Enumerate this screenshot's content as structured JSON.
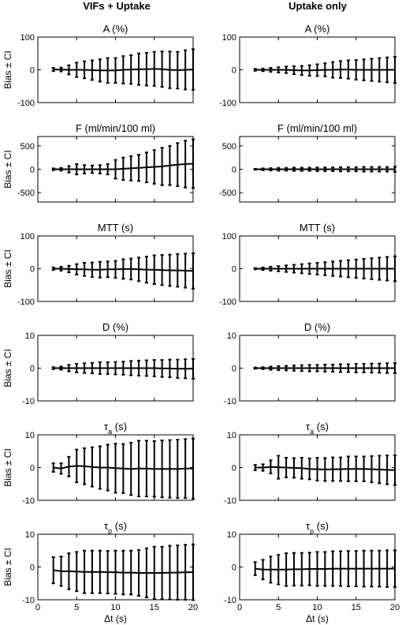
{
  "column_titles": [
    "VIFs + Uptake",
    "Uptake only"
  ],
  "chart_data": [
    {
      "type": "errorbar",
      "title": "A (%)",
      "title_sub": "",
      "title_suffix": "",
      "ylabel": "Bias ± CI",
      "ylim": [
        -100,
        100
      ],
      "yticks": [
        -100,
        0,
        100
      ],
      "xlim": [
        0,
        20
      ],
      "xticks": [
        0,
        5,
        10,
        15,
        20
      ],
      "x": [
        2,
        3,
        4,
        5,
        6,
        7,
        8,
        9,
        10,
        11,
        12,
        13,
        14,
        15,
        16,
        17,
        18,
        19,
        20
      ],
      "mean": [
        1,
        1,
        0,
        0,
        0,
        -1,
        -2,
        -2,
        -2,
        0,
        1,
        2,
        2,
        3,
        2,
        0,
        -1,
        0,
        1
      ],
      "ci": [
        5,
        6,
        14,
        22,
        26,
        30,
        34,
        38,
        38,
        42,
        44,
        48,
        50,
        52,
        54,
        56,
        56,
        60,
        62
      ]
    },
    {
      "type": "errorbar",
      "title": "A (%)",
      "title_sub": "",
      "title_suffix": "",
      "ylabel": "",
      "ylim": [
        -100,
        100
      ],
      "yticks": [
        -100,
        0,
        100
      ],
      "xlim": [
        0,
        20
      ],
      "xticks": [
        0,
        5,
        10,
        15,
        20
      ],
      "x": [
        2,
        3,
        4,
        5,
        6,
        7,
        8,
        9,
        10,
        11,
        12,
        13,
        14,
        15,
        16,
        17,
        18,
        19,
        20
      ],
      "mean": [
        0,
        0,
        0,
        0,
        0,
        -1,
        -2,
        -2,
        -1,
        0,
        0,
        1,
        1,
        0,
        0,
        0,
        0,
        0,
        0
      ],
      "ci": [
        3,
        4,
        6,
        8,
        10,
        12,
        14,
        16,
        18,
        20,
        24,
        26,
        28,
        30,
        32,
        34,
        36,
        38,
        40
      ]
    },
    {
      "type": "errorbar",
      "title": "F (ml/min/100 ml)",
      "title_sub": "",
      "title_suffix": "",
      "ylabel": "Bias ± CI",
      "ylim": [
        -700,
        700
      ],
      "yticks": [
        -500,
        0,
        500
      ],
      "xlim": [
        0,
        20
      ],
      "xticks": [
        0,
        5,
        10,
        15,
        20
      ],
      "x": [
        2,
        3,
        4,
        5,
        6,
        7,
        8,
        9,
        10,
        11,
        12,
        13,
        14,
        15,
        16,
        17,
        18,
        19,
        20
      ],
      "mean": [
        0,
        0,
        0,
        0,
        0,
        0,
        0,
        0,
        0,
        10,
        20,
        30,
        40,
        50,
        60,
        80,
        100,
        110,
        120
      ],
      "ci": [
        20,
        30,
        70,
        110,
        90,
        80,
        90,
        110,
        200,
        240,
        260,
        280,
        320,
        360,
        400,
        420,
        460,
        500,
        520
      ]
    },
    {
      "type": "errorbar",
      "title": "F (ml/min/100 ml)",
      "title_sub": "",
      "title_suffix": "",
      "ylabel": "",
      "ylim": [
        -700,
        700
      ],
      "yticks": [
        -500,
        0,
        500
      ],
      "xlim": [
        0,
        20
      ],
      "xticks": [
        0,
        5,
        10,
        15,
        20
      ],
      "x": [
        2,
        3,
        4,
        5,
        6,
        7,
        8,
        9,
        10,
        11,
        12,
        13,
        14,
        15,
        16,
        17,
        18,
        19,
        20
      ],
      "mean": [
        0,
        0,
        0,
        0,
        0,
        0,
        0,
        0,
        0,
        0,
        0,
        0,
        0,
        0,
        0,
        0,
        0,
        0,
        0
      ],
      "ci": [
        10,
        20,
        25,
        30,
        30,
        35,
        35,
        35,
        40,
        40,
        40,
        45,
        45,
        45,
        50,
        50,
        50,
        50,
        55
      ]
    },
    {
      "type": "errorbar",
      "title": "MTT (s)",
      "title_sub": "",
      "title_suffix": "",
      "ylabel": "Bias ± CI",
      "ylim": [
        -100,
        100
      ],
      "yticks": [
        -100,
        0,
        100
      ],
      "xlim": [
        0,
        20
      ],
      "xticks": [
        0,
        5,
        10,
        15,
        20
      ],
      "x": [
        2,
        3,
        4,
        5,
        6,
        7,
        8,
        9,
        10,
        11,
        12,
        13,
        14,
        15,
        16,
        17,
        18,
        19,
        20
      ],
      "mean": [
        0,
        0,
        -1,
        -2,
        -2,
        -3,
        -3,
        -2,
        -2,
        -1,
        -1,
        -2,
        -3,
        -3,
        -4,
        -5,
        -5,
        -6,
        -7
      ],
      "ci": [
        4,
        6,
        10,
        16,
        20,
        22,
        24,
        24,
        26,
        30,
        32,
        36,
        40,
        44,
        46,
        48,
        50,
        52,
        54
      ]
    },
    {
      "type": "errorbar",
      "title": "MTT (s)",
      "title_sub": "",
      "title_suffix": "",
      "ylabel": "",
      "ylim": [
        -100,
        100
      ],
      "yticks": [
        -100,
        0,
        100
      ],
      "xlim": [
        0,
        20
      ],
      "xticks": [
        0,
        5,
        10,
        15,
        20
      ],
      "x": [
        2,
        3,
        4,
        5,
        6,
        7,
        8,
        9,
        10,
        11,
        12,
        13,
        14,
        15,
        16,
        17,
        18,
        19,
        20
      ],
      "mean": [
        0,
        0,
        0,
        0,
        0,
        0,
        0,
        0,
        0,
        0,
        0,
        0,
        0,
        0,
        0,
        0,
        0,
        0,
        0
      ],
      "ci": [
        2,
        4,
        6,
        8,
        10,
        12,
        14,
        16,
        18,
        20,
        22,
        24,
        26,
        28,
        30,
        32,
        34,
        36,
        38
      ]
    },
    {
      "type": "errorbar",
      "title": "D (%)",
      "title_sub": "",
      "title_suffix": "",
      "ylabel": "Bias ± CI",
      "ylim": [
        -10,
        10
      ],
      "yticks": [
        -10,
        0,
        10
      ],
      "xlim": [
        0,
        20
      ],
      "xticks": [
        0,
        5,
        10,
        15,
        20
      ],
      "x": [
        2,
        3,
        4,
        5,
        6,
        7,
        8,
        9,
        10,
        11,
        12,
        13,
        14,
        15,
        16,
        17,
        18,
        19,
        20
      ],
      "mean": [
        0,
        0,
        0,
        0,
        0,
        0,
        0,
        0,
        0,
        0,
        0,
        0,
        0,
        0,
        -0.1,
        -0.1,
        -0.2,
        -0.2,
        -0.2
      ],
      "ci": [
        0.3,
        0.5,
        1.0,
        1.3,
        1.5,
        1.6,
        1.8,
        1.8,
        1.9,
        2.0,
        2.2,
        2.3,
        2.4,
        2.5,
        2.6,
        2.7,
        2.8,
        2.9,
        3.0
      ]
    },
    {
      "type": "errorbar",
      "title": "D (%)",
      "title_sub": "",
      "title_suffix": "",
      "ylabel": "",
      "ylim": [
        -10,
        10
      ],
      "yticks": [
        -10,
        0,
        10
      ],
      "xlim": [
        0,
        20
      ],
      "xticks": [
        0,
        5,
        10,
        15,
        20
      ],
      "x": [
        2,
        3,
        4,
        5,
        6,
        7,
        8,
        9,
        10,
        11,
        12,
        13,
        14,
        15,
        16,
        17,
        18,
        19,
        20
      ],
      "mean": [
        0,
        0,
        0,
        0,
        0,
        0,
        0,
        0,
        0,
        0,
        0,
        0,
        0,
        0,
        0,
        0,
        0,
        0,
        0
      ],
      "ci": [
        0.2,
        0.3,
        0.5,
        0.6,
        0.7,
        0.8,
        0.9,
        1.0,
        1.0,
        1.1,
        1.1,
        1.2,
        1.2,
        1.3,
        1.3,
        1.4,
        1.4,
        1.5,
        1.5
      ]
    },
    {
      "type": "errorbar",
      "title": "τ",
      "title_sub": "a",
      "title_suffix": " (s)",
      "ylabel": "Bias ± CI",
      "ylim": [
        -10,
        10
      ],
      "yticks": [
        -10,
        0,
        10
      ],
      "xlim": [
        0,
        20
      ],
      "xticks": [
        0,
        5,
        10,
        15,
        20
      ],
      "x": [
        2,
        3,
        4,
        5,
        6,
        7,
        8,
        9,
        10,
        11,
        12,
        13,
        14,
        15,
        16,
        17,
        18,
        19,
        20
      ],
      "mean": [
        0,
        -0.3,
        0.3,
        0.5,
        0.4,
        0.2,
        0,
        0,
        -0.2,
        -0.3,
        -0.4,
        -0.3,
        -0.3,
        -0.4,
        -0.4,
        -0.4,
        -0.4,
        -0.3,
        -0.3
      ],
      "ci": [
        1.3,
        1.6,
        3.0,
        5.0,
        5.5,
        6.0,
        6.5,
        7.0,
        7.5,
        7.5,
        8.0,
        8.5,
        8.5,
        8.5,
        8.7,
        8.8,
        8.9,
        9.0,
        9.2
      ]
    },
    {
      "type": "errorbar",
      "title": "τ",
      "title_sub": "a",
      "title_suffix": " (s)",
      "ylabel": "",
      "ylim": [
        -10,
        10
      ],
      "yticks": [
        -10,
        0,
        10
      ],
      "xlim": [
        0,
        20
      ],
      "xticks": [
        0,
        5,
        10,
        15,
        20
      ],
      "x": [
        2,
        3,
        4,
        5,
        6,
        7,
        8,
        9,
        10,
        11,
        12,
        13,
        14,
        15,
        16,
        17,
        18,
        19,
        20
      ],
      "mean": [
        0,
        0,
        0.2,
        0.1,
        0,
        -0.1,
        -0.2,
        -0.4,
        -0.5,
        -0.6,
        -0.5,
        -0.5,
        -0.4,
        -0.4,
        -0.4,
        -0.5,
        -0.6,
        -0.7,
        -0.8
      ],
      "ci": [
        0.8,
        1.0,
        2.0,
        3.5,
        3.0,
        3.0,
        3.2,
        3.2,
        3.5,
        3.5,
        3.6,
        3.6,
        3.8,
        3.8,
        3.8,
        4.0,
        4.2,
        4.4,
        4.5
      ]
    },
    {
      "type": "errorbar",
      "title": "τ",
      "title_sub": "p",
      "title_suffix": " (s)",
      "ylabel": "Bias ± CI",
      "ylim": [
        -10,
        10
      ],
      "yticks": [
        -10,
        0,
        10
      ],
      "xlim": [
        0,
        20
      ],
      "xticks": [
        0,
        5,
        10,
        15,
        20
      ],
      "x": [
        2,
        3,
        4,
        5,
        6,
        7,
        8,
        9,
        10,
        11,
        12,
        13,
        14,
        15,
        16,
        17,
        18,
        19,
        20
      ],
      "mean": [
        -1,
        -1.3,
        -1.3,
        -1.4,
        -1.5,
        -1.5,
        -1.5,
        -1.6,
        -1.6,
        -1.7,
        -1.7,
        -1.8,
        -1.8,
        -1.8,
        -1.8,
        -1.7,
        -1.7,
        -1.6,
        -1.6
      ],
      "ci": [
        4.0,
        4.5,
        5.5,
        6.0,
        6.5,
        6.5,
        6.5,
        6.5,
        6.6,
        6.7,
        6.7,
        7.0,
        7.5,
        8.0,
        8.0,
        8.2,
        8.3,
        8.4,
        8.5
      ]
    },
    {
      "type": "errorbar",
      "title": "τ",
      "title_sub": "p",
      "title_suffix": " (s)",
      "ylabel": "",
      "ylim": [
        -10,
        10
      ],
      "yticks": [
        -10,
        0,
        10
      ],
      "xlim": [
        0,
        20
      ],
      "xticks": [
        0,
        5,
        10,
        15,
        20
      ],
      "x": [
        2,
        3,
        4,
        5,
        6,
        7,
        8,
        9,
        10,
        11,
        12,
        13,
        14,
        15,
        16,
        17,
        18,
        19,
        20
      ],
      "mean": [
        -0.5,
        -0.8,
        -0.8,
        -0.8,
        -0.8,
        -0.7,
        -0.7,
        -0.6,
        -0.6,
        -0.6,
        -0.5,
        -0.5,
        -0.5,
        -0.5,
        -0.5,
        -0.5,
        -0.5,
        -0.5,
        -0.5
      ],
      "ci": [
        2.0,
        3.0,
        4.0,
        4.5,
        5.0,
        5.0,
        5.0,
        5.0,
        5.2,
        5.2,
        5.3,
        5.3,
        5.4,
        5.4,
        5.5,
        5.5,
        5.5,
        5.6,
        5.6
      ]
    }
  ],
  "shared_xlabel": "Δt (s)"
}
